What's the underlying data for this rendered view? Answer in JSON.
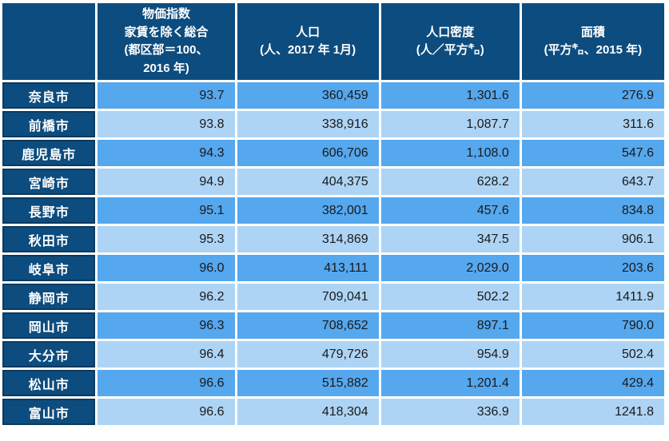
{
  "chart_data": {
    "type": "table",
    "header": [
      {
        "lines": []
      },
      {
        "lines": [
          "物価指数",
          "家賃を除く総合",
          "(都区部＝100、",
          "2016 年)"
        ]
      },
      {
        "lines": [
          "人口",
          "(人、2017 年 1月)"
        ]
      },
      {
        "lines": [
          "人口密度",
          "(人／平方㌔)"
        ]
      },
      {
        "lines": [
          "面積",
          "(平方㌔、2015 年)"
        ]
      }
    ],
    "rows": [
      {
        "city": "奈良市",
        "values": [
          "93.7",
          "360,459",
          "1,301.6",
          "276.9"
        ]
      },
      {
        "city": "前橋市",
        "values": [
          "93.8",
          "338,916",
          "1,087.7",
          "311.6"
        ]
      },
      {
        "city": "鹿児島市",
        "values": [
          "94.3",
          "606,706",
          "1,108.0",
          "547.6"
        ]
      },
      {
        "city": "宮崎市",
        "values": [
          "94.9",
          "404,375",
          "628.2",
          "643.7"
        ]
      },
      {
        "city": "長野市",
        "values": [
          "95.1",
          "382,001",
          "457.6",
          "834.8"
        ]
      },
      {
        "city": "秋田市",
        "values": [
          "95.3",
          "314,869",
          "347.5",
          "906.1"
        ]
      },
      {
        "city": "岐阜市",
        "values": [
          "96.0",
          "413,111",
          "2,029.0",
          "203.6"
        ]
      },
      {
        "city": "静岡市",
        "values": [
          "96.2",
          "709,041",
          "502.2",
          "1411.9"
        ]
      },
      {
        "city": "岡山市",
        "values": [
          "96.3",
          "708,652",
          "897.1",
          "790.0"
        ]
      },
      {
        "city": "大分市",
        "values": [
          "96.4",
          "479,726",
          "954.9",
          "502.4"
        ]
      },
      {
        "city": "松山市",
        "values": [
          "96.6",
          "515,882",
          "1,201.4",
          "429.4"
        ]
      },
      {
        "city": "富山市",
        "values": [
          "96.6",
          "418,304",
          "336.9",
          "1241.8"
        ]
      }
    ]
  },
  "colors": {
    "header_bg": "#0D4C7E",
    "label_border": "#0A3A5F",
    "row_odd_bg": "#55A7EE",
    "row_even_bg": "#AED4F5",
    "grid": "#FFFFFF",
    "data_text": "#1A1A1A",
    "header_text": "#FFFFFF"
  }
}
